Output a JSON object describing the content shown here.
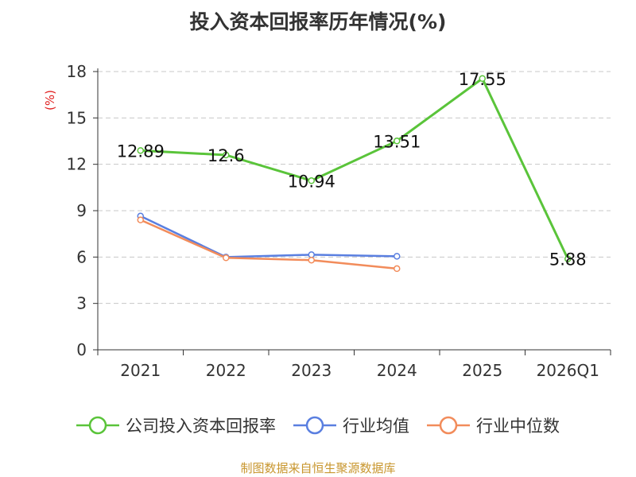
{
  "chart_data": {
    "type": "line",
    "title": "投入资本回报率历年情况(%)",
    "ylabel": "(%)",
    "categories": [
      "2021",
      "2022",
      "2023",
      "2024",
      "2025",
      "2026Q1"
    ],
    "ylim": [
      0,
      18
    ],
    "yticks": [
      0,
      3,
      6,
      9,
      12,
      15,
      18
    ],
    "grid": true,
    "legend_position": "bottom",
    "series": [
      {
        "name": "公司投入资本回报率",
        "color": "#5ac43a",
        "values": [
          12.89,
          12.6,
          10.94,
          13.51,
          17.55,
          5.88
        ],
        "labels": [
          "12.89",
          "12.6",
          "10.94",
          "13.51",
          "17.55",
          "5.88"
        ]
      },
      {
        "name": "行业均值",
        "color": "#5a7fe0",
        "values": [
          8.65,
          6.0,
          6.15,
          6.05,
          null,
          null
        ]
      },
      {
        "name": "行业中位数",
        "color": "#f28c5b",
        "values": [
          8.4,
          5.95,
          5.8,
          5.25,
          null,
          null
        ]
      }
    ]
  },
  "source": "制图数据来自恒生聚源数据库"
}
